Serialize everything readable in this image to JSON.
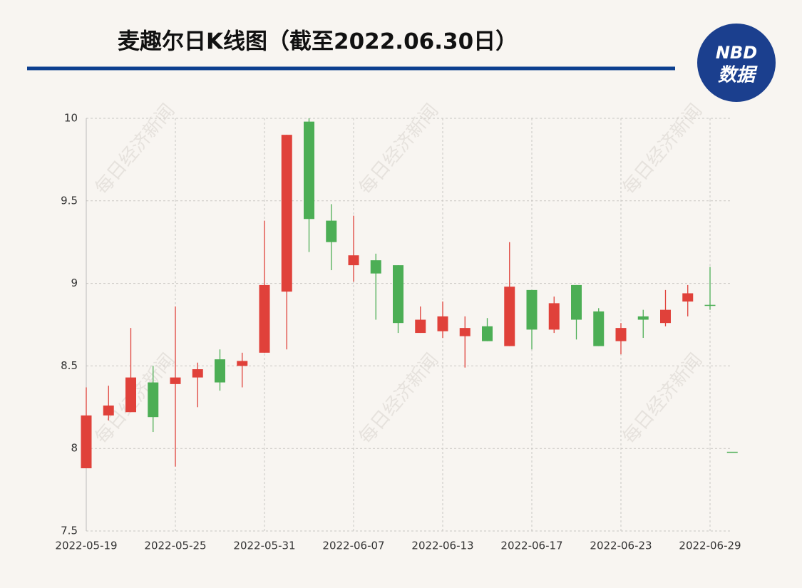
{
  "chart_data": {
    "type": "candlestick",
    "title": "麦趣尔日K线图（截至2022.06.30日）",
    "logo": {
      "top": "NBD",
      "bottom": "数据"
    },
    "watermark": "每日经济新闻",
    "categories": [
      "2022-05-19",
      null,
      null,
      null,
      "2022-05-25",
      null,
      null,
      null,
      "2022-05-31",
      null,
      null,
      null,
      "2022-06-07",
      null,
      null,
      null,
      "2022-06-13",
      null,
      null,
      null,
      "2022-06-17",
      null,
      null,
      null,
      "2022-06-23",
      null,
      null,
      null,
      "2022-06-29",
      null
    ],
    "open": [
      7.88,
      8.2,
      8.22,
      8.4,
      8.39,
      8.43,
      8.54,
      8.5,
      8.58,
      8.95,
      9.98,
      9.38,
      9.11,
      9.14,
      9.11,
      8.7,
      8.71,
      8.68,
      8.74,
      8.62,
      8.96,
      8.72,
      8.99,
      8.83,
      8.65,
      8.8,
      8.76,
      8.89,
      8.87,
      7.98
    ],
    "high": [
      8.37,
      8.38,
      8.73,
      8.5,
      8.86,
      8.52,
      8.6,
      8.58,
      9.38,
      9.9,
      10.0,
      9.48,
      9.41,
      9.18,
      9.11,
      8.86,
      8.89,
      8.8,
      8.79,
      9.25,
      8.96,
      8.92,
      8.99,
      8.85,
      8.76,
      8.84,
      8.96,
      8.99,
      9.1,
      7.98
    ],
    "low": [
      7.88,
      8.17,
      8.22,
      8.1,
      7.89,
      8.25,
      8.35,
      8.37,
      8.58,
      8.6,
      9.19,
      9.08,
      9.01,
      8.78,
      8.7,
      8.7,
      8.67,
      8.49,
      8.65,
      8.62,
      8.6,
      8.7,
      8.66,
      8.62,
      8.57,
      8.67,
      8.74,
      8.8,
      8.84,
      7.98
    ],
    "close": [
      8.2,
      8.26,
      8.43,
      8.19,
      8.43,
      8.48,
      8.4,
      8.53,
      8.99,
      9.9,
      9.39,
      9.25,
      9.17,
      9.06,
      8.76,
      8.78,
      8.8,
      8.73,
      8.65,
      8.98,
      8.72,
      8.88,
      8.78,
      8.62,
      8.73,
      8.78,
      8.84,
      8.94,
      8.87,
      7.98
    ],
    "up_color": "#e0413a",
    "down_color": "#4cae55",
    "ylim": [
      7.5,
      10
    ],
    "yticks": [
      7.5,
      8,
      8.5,
      9,
      9.5,
      10
    ],
    "grid": true
  }
}
